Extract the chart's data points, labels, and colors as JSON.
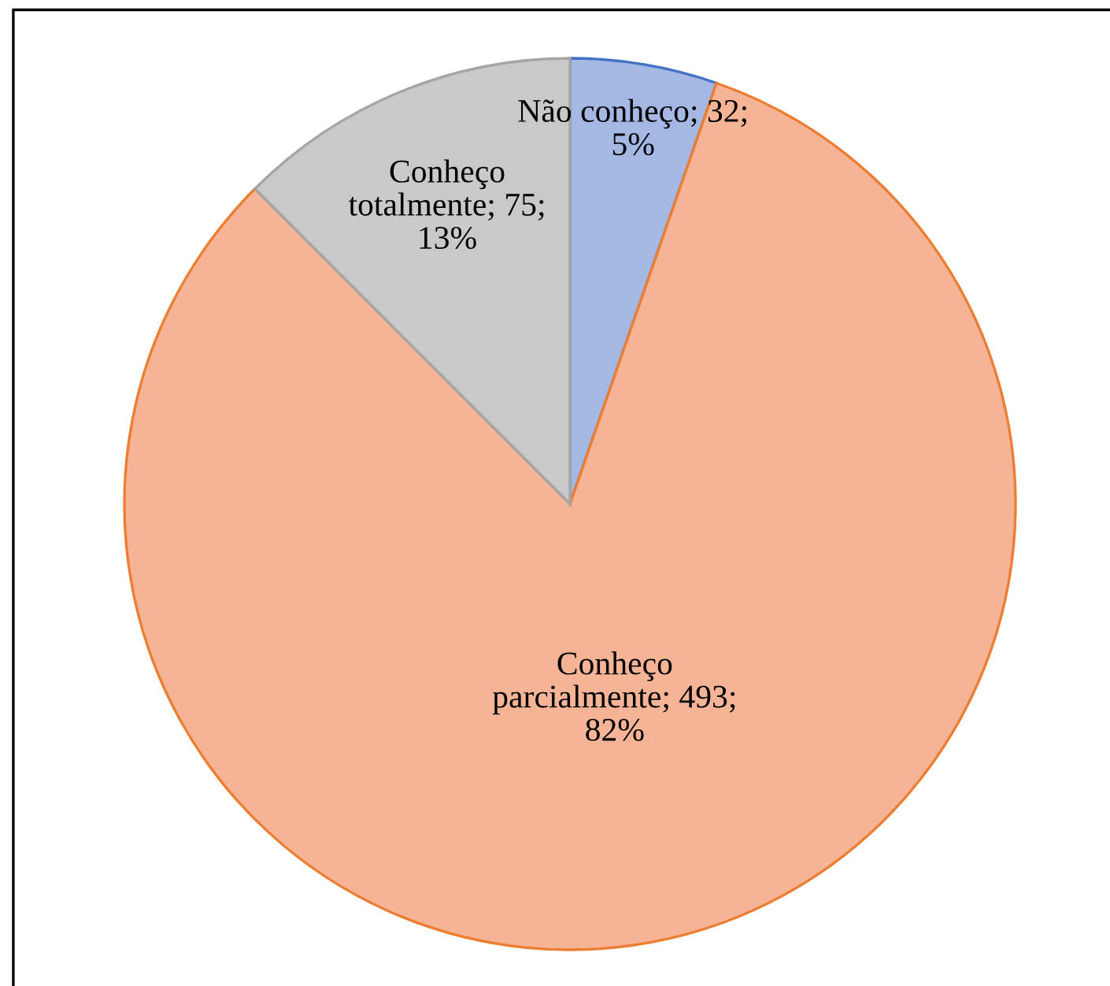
{
  "chart_data": {
    "type": "pie",
    "categories": [
      "Não conheço",
      "Conheço parcialmente",
      "Conheço totalmente"
    ],
    "values": [
      32,
      493,
      75
    ],
    "value_labels": [
      "32; 5%",
      "493; 82%",
      "75; 13%"
    ],
    "colors": [
      "#a5b8e4",
      "#f6b496",
      "#c9c9c9"
    ],
    "legend": false
  }
}
